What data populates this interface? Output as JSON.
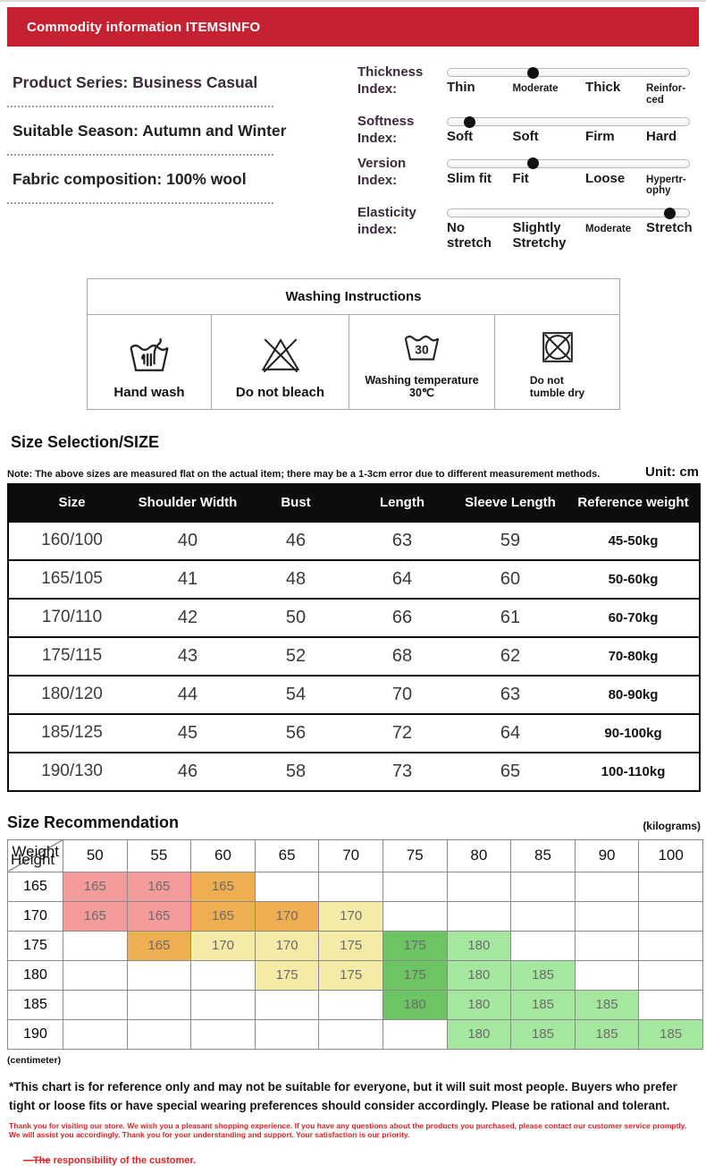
{
  "header": {
    "title": "Commodity information ITEMSINFO"
  },
  "product_info": {
    "items": [
      {
        "label": "Product Series: Business Casual"
      },
      {
        "label": "Suitable Season: Autumn and Winter"
      },
      {
        "label": "Fabric composition: 100% wool"
      }
    ]
  },
  "indices": [
    {
      "name": "Thickness\nIndex:",
      "position_pct": 35,
      "labels": [
        {
          "text": "Thin",
          "small": false
        },
        {
          "text": "Moderate",
          "small": true
        },
        {
          "text": "Thick",
          "small": false
        },
        {
          "text": "Reinfor-\nced",
          "small": true
        }
      ]
    },
    {
      "name": "Softness\nIndex:",
      "position_pct": 9,
      "labels": [
        {
          "text": "Soft",
          "small": false
        },
        {
          "text": "Soft",
          "small": false
        },
        {
          "text": "Firm",
          "small": false
        },
        {
          "text": "Hard",
          "small": false
        }
      ]
    },
    {
      "name": "Version\nIndex:",
      "position_pct": 35,
      "labels": [
        {
          "text": "Slim fit",
          "small": false
        },
        {
          "text": "Fit",
          "small": false
        },
        {
          "text": "Loose",
          "small": false
        },
        {
          "text": "Hypertr-\nophy",
          "small": true
        }
      ]
    },
    {
      "name": "Elasticity\nindex:",
      "position_pct": 92,
      "labels": [
        {
          "text": "No\nstretch",
          "small": false
        },
        {
          "text": "Slightly\nStretchy",
          "small": false
        },
        {
          "text": "Moderate",
          "small": true
        },
        {
          "text": "Stretch",
          "small": false
        }
      ]
    }
  ],
  "washing": {
    "title": "Washing Instructions",
    "items": [
      {
        "icon": "hand-wash-icon",
        "label": "Hand wash"
      },
      {
        "icon": "do-not-bleach-icon",
        "label": "Do not bleach"
      },
      {
        "icon": "washing-temperature-icon",
        "label": "Washing temperature 30℃",
        "icon_text": "30"
      },
      {
        "icon": "do-not-tumble-dry-icon",
        "label": "Do not\ntumble dry"
      }
    ]
  },
  "size_section": {
    "title": "Size Selection/SIZE",
    "note": "Note: The above sizes are measured flat on the actual item; there may be a 1-3cm error due to different measurement methods.",
    "unit": "Unit: cm",
    "columns": [
      "Size",
      "Shoulder Width",
      "Bust",
      "Length",
      "Sleeve Length",
      "Reference weight"
    ],
    "rows": [
      [
        "160/100",
        "40",
        "46",
        "63",
        "59",
        "45-50kg"
      ],
      [
        "165/105",
        "41",
        "48",
        "64",
        "60",
        "50-60kg"
      ],
      [
        "170/110",
        "42",
        "50",
        "66",
        "61",
        "60-70kg"
      ],
      [
        "175/115",
        "43",
        "52",
        "68",
        "62",
        "70-80kg"
      ],
      [
        "180/120",
        "44",
        "54",
        "70",
        "63",
        "80-90kg"
      ],
      [
        "185/125",
        "45",
        "56",
        "72",
        "64",
        "90-100kg"
      ],
      [
        "190/130",
        "46",
        "58",
        "73",
        "65",
        "100-110kg"
      ]
    ]
  },
  "recommendation": {
    "title": "Size Recommendation",
    "unit_right": "(kilograms)",
    "unit_bottom": "(centimeter)",
    "corner": {
      "top": "Weight",
      "bottom": "Height"
    },
    "weights": [
      "50",
      "55",
      "60",
      "65",
      "70",
      "75",
      "80",
      "85",
      "90",
      "100"
    ],
    "heights": [
      "165",
      "170",
      "175",
      "180",
      "185",
      "190"
    ],
    "cells": [
      [
        {
          "v": "165",
          "c": "pink"
        },
        {
          "v": "165",
          "c": "pink"
        },
        {
          "v": "165",
          "c": "orange"
        },
        null,
        null,
        null,
        null,
        null,
        null,
        null
      ],
      [
        {
          "v": "165",
          "c": "pink"
        },
        {
          "v": "165",
          "c": "pink"
        },
        {
          "v": "165",
          "c": "orange"
        },
        {
          "v": "170",
          "c": "orange"
        },
        {
          "v": "170",
          "c": "yellow"
        },
        null,
        null,
        null,
        null,
        null
      ],
      [
        null,
        {
          "v": "165",
          "c": "orange"
        },
        {
          "v": "170",
          "c": "yellow"
        },
        {
          "v": "170",
          "c": "yellow"
        },
        {
          "v": "175",
          "c": "yellow"
        },
        {
          "v": "175",
          "c": "green"
        },
        {
          "v": "180",
          "c": "lightgreen"
        },
        null,
        null,
        null
      ],
      [
        null,
        null,
        null,
        {
          "v": "175",
          "c": "yellow"
        },
        {
          "v": "175",
          "c": "yellow"
        },
        {
          "v": "175",
          "c": "green"
        },
        {
          "v": "180",
          "c": "lightgreen"
        },
        {
          "v": "185",
          "c": "lightgreen"
        },
        null,
        null
      ],
      [
        null,
        null,
        null,
        null,
        null,
        {
          "v": "180",
          "c": "green"
        },
        {
          "v": "180",
          "c": "lightgreen"
        },
        {
          "v": "185",
          "c": "lightgreen"
        },
        {
          "v": "185",
          "c": "lightgreen"
        },
        null
      ],
      [
        null,
        null,
        null,
        null,
        null,
        null,
        {
          "v": "180",
          "c": "lightgreen"
        },
        {
          "v": "185",
          "c": "lightgreen"
        },
        {
          "v": "185",
          "c": "lightgreen"
        },
        {
          "v": "185",
          "c": "lightgreen"
        }
      ]
    ],
    "colors": {
      "pink": "#F49B9B",
      "orange": "#EFAF50",
      "yellow": "#F4EBA6",
      "green": "#6CC462",
      "lightgreen": "#A6E79F"
    }
  },
  "footer": {
    "disclaimer": "*This chart is for reference only and may not be suitable for everyone, but it will suit most people. Buyers who prefer tight or loose fits or have special wearing preferences should consider accordingly. Please be rational and tolerant.",
    "thanks": "Thank you for visiting our store. We wish you a pleasant shopping experience. If you have any questions about the products you purchased, please contact our customer service promptly. We will assist you accordingly. Thank you for your understanding and support. Your satisfaction is our priority.",
    "responsibility_struck": "—The",
    "responsibility_rest": " responsibility of the customer."
  },
  "theme": {
    "accent_red": "#C52130",
    "plum_text": "#3B2A3B",
    "table_black": "#0d0d0d",
    "footer_red": "#E02424"
  }
}
